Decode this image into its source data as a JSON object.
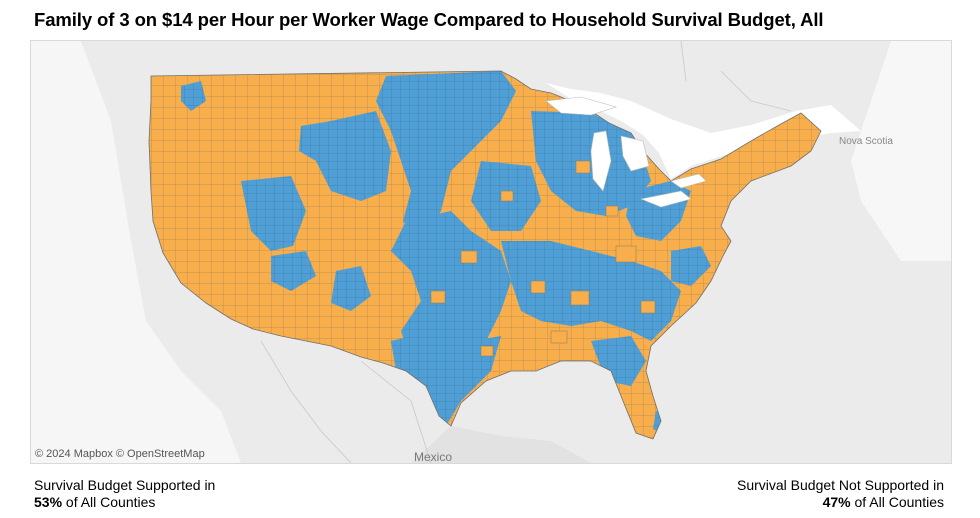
{
  "title": "Family of 3 on $14 per Hour per Worker Wage Compared to Household Survival Budget, All",
  "map": {
    "attribution": "© 2024 Mapbox  © OpenStreetMap",
    "labels": {
      "mexico": "Mexico",
      "nova_scotia": "Nova Scotia"
    },
    "colors": {
      "supported": "#4f9fd6",
      "not_supported": "#f7ae4b",
      "land": "#ebebeb",
      "water": "#ffffff",
      "county_border": "#7a7a7a"
    }
  },
  "summary": {
    "supported": {
      "line1": "Survival Budget Supported in",
      "percent": "53%",
      "suffix": " of All Counties"
    },
    "not_supported": {
      "line1": "Survival Budget Not Supported in",
      "percent": "47%",
      "suffix": " of All Counties"
    }
  }
}
